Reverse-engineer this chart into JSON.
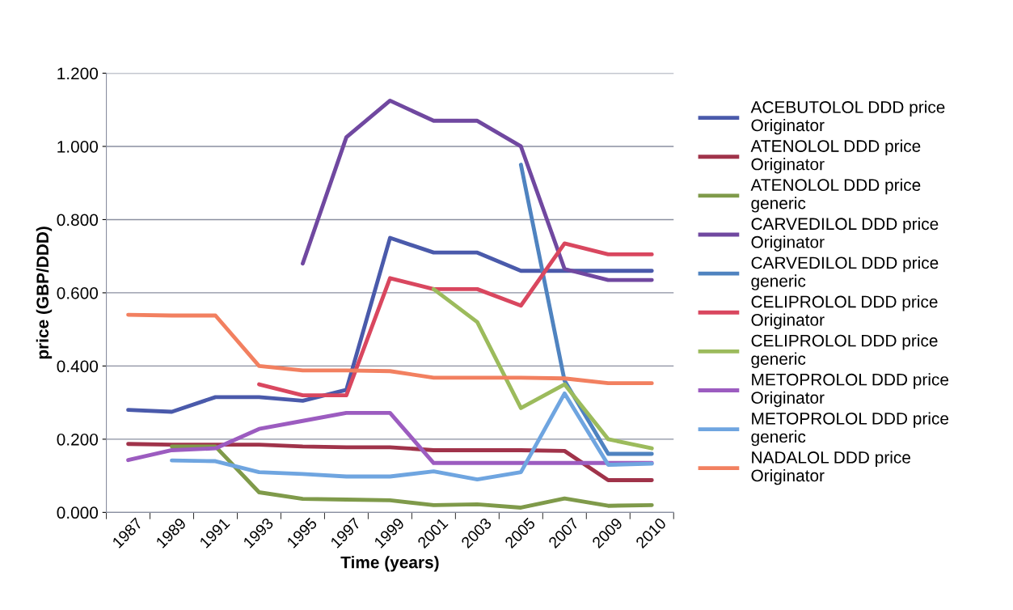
{
  "chart_data": {
    "type": "line",
    "xlabel": "Time (years)",
    "ylabel": "price (GBP/DDD)",
    "categories": [
      "1987",
      "1989",
      "1991",
      "1993",
      "1995",
      "1997",
      "1999",
      "2001",
      "2003",
      "2005",
      "2007",
      "2009",
      "2010"
    ],
    "ylim": [
      0,
      1.2
    ],
    "yticks": [
      {
        "value": 0,
        "label": "0.000"
      },
      {
        "value": 0.2,
        "label": "0.200"
      },
      {
        "value": 0.4,
        "label": "0.400"
      },
      {
        "value": 0.6,
        "label": "0.600"
      },
      {
        "value": 0.8,
        "label": "0.800"
      },
      {
        "value": 1.0,
        "label": "1.000"
      },
      {
        "value": 1.2,
        "label": "1.200"
      }
    ],
    "grid": "y",
    "legend": "right",
    "marker": "none",
    "line_style": "solid",
    "series": [
      {
        "name": "ACEBUTOLOL DDD price Originator",
        "color": "#4a5aab",
        "values": [
          0.28,
          0.275,
          0.315,
          0.315,
          0.305,
          0.335,
          0.75,
          0.71,
          0.71,
          0.66,
          0.66,
          0.66,
          0.66
        ]
      },
      {
        "name": "ATENOLOL DDD price Originator",
        "color": "#a0334a",
        "values": [
          0.187,
          0.185,
          0.185,
          0.185,
          0.18,
          0.178,
          0.178,
          0.17,
          0.17,
          0.17,
          0.168,
          0.088,
          0.088
        ]
      },
      {
        "name": "ATENOLOL DDD price generic",
        "color": "#7f9a4a",
        "values": [
          null,
          0.18,
          0.18,
          0.055,
          0.037,
          0.035,
          0.033,
          0.02,
          0.022,
          0.013,
          0.038,
          0.018,
          0.02
        ]
      },
      {
        "name": "CARVEDILOL DDD price Originator",
        "color": "#7048a0",
        "values": [
          null,
          null,
          null,
          null,
          0.68,
          1.025,
          1.125,
          1.07,
          1.07,
          1.0,
          0.665,
          0.635,
          0.635
        ]
      },
      {
        "name": "CARVEDILOL DDD price generic",
        "color": "#4f83c0",
        "values": [
          null,
          null,
          null,
          null,
          null,
          null,
          null,
          null,
          null,
          0.95,
          0.36,
          0.16,
          0.16
        ]
      },
      {
        "name": "CELIPROLOL DDD price Originator",
        "color": "#d9475f",
        "values": [
          null,
          null,
          null,
          0.35,
          0.32,
          0.32,
          0.64,
          0.61,
          0.61,
          0.565,
          0.735,
          0.705,
          0.705
        ]
      },
      {
        "name": "CELIPROLOL DDD price generic",
        "color": "#9cbb5c",
        "values": [
          null,
          null,
          null,
          null,
          null,
          null,
          null,
          0.61,
          0.52,
          0.285,
          0.35,
          0.2,
          0.175
        ]
      },
      {
        "name": "METOPROLOL DDD price Originator",
        "color": "#9c5cc0",
        "values": [
          0.143,
          0.17,
          0.175,
          0.228,
          0.25,
          0.272,
          0.272,
          0.135,
          0.135,
          0.135,
          0.135,
          0.135,
          0.135
        ]
      },
      {
        "name": "METOPROLOL DDD price generic",
        "color": "#6fa5e0",
        "values": [
          null,
          0.142,
          0.14,
          0.11,
          0.105,
          0.098,
          0.098,
          0.112,
          0.09,
          0.11,
          0.325,
          0.13,
          0.133
        ]
      },
      {
        "name": "NADALOL DDD price Originator",
        "color": "#f28060",
        "values": [
          0.54,
          0.538,
          0.538,
          0.4,
          0.388,
          0.388,
          0.386,
          0.368,
          0.368,
          0.368,
          0.366,
          0.353,
          0.353
        ]
      }
    ]
  }
}
